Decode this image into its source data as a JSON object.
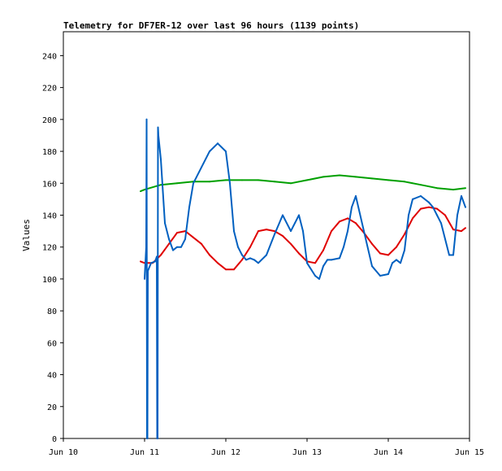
{
  "chart_data": {
    "type": "line",
    "title": "Telemetry for DF7ER-12 over last 96 hours (1139 points)",
    "xlabel": "",
    "ylabel": "Values",
    "ylim": [
      0,
      255
    ],
    "y_ticks": [
      0,
      20,
      40,
      60,
      80,
      100,
      120,
      140,
      160,
      180,
      200,
      220,
      240
    ],
    "x_ticks": [
      {
        "pos": 0,
        "label": "Jun 10"
      },
      {
        "pos": 1,
        "label": "Jun 11"
      },
      {
        "pos": 2,
        "label": "Jun 12"
      },
      {
        "pos": 3,
        "label": "Jun 13"
      },
      {
        "pos": 4,
        "label": "Jun 14"
      },
      {
        "pos": 5,
        "label": "Jun 15"
      }
    ],
    "xlim": [
      0,
      5
    ],
    "grid": false,
    "legend": "none",
    "series": [
      {
        "color": "#00a000",
        "x": [
          0.95,
          1.0,
          1.2,
          1.4,
          1.6,
          1.8,
          2.0,
          2.2,
          2.4,
          2.6,
          2.8,
          3.0,
          3.2,
          3.4,
          3.6,
          3.8,
          4.0,
          4.2,
          4.4,
          4.6,
          4.8,
          4.95
        ],
        "y": [
          155,
          156,
          159,
          160,
          161,
          161,
          162,
          162,
          162,
          161,
          160,
          162,
          164,
          165,
          164,
          163,
          162,
          161,
          159,
          157,
          156,
          157
        ]
      },
      {
        "color": "#e00000",
        "x": [
          0.95,
          1.0,
          1.1,
          1.2,
          1.3,
          1.4,
          1.5,
          1.6,
          1.7,
          1.8,
          1.9,
          2.0,
          2.1,
          2.2,
          2.3,
          2.4,
          2.5,
          2.6,
          2.7,
          2.8,
          2.9,
          3.0,
          3.1,
          3.2,
          3.3,
          3.4,
          3.5,
          3.6,
          3.7,
          3.8,
          3.9,
          4.0,
          4.1,
          4.2,
          4.3,
          4.4,
          4.5,
          4.6,
          4.7,
          4.8,
          4.9,
          4.95
        ],
        "y": [
          111,
          110,
          110,
          115,
          122,
          129,
          130,
          126,
          122,
          115,
          110,
          106,
          106,
          112,
          120,
          130,
          131,
          130,
          127,
          122,
          116,
          111,
          110,
          118,
          130,
          136,
          138,
          135,
          129,
          122,
          116,
          115,
          120,
          128,
          138,
          144,
          145,
          144,
          140,
          131,
          130,
          132
        ]
      },
      {
        "color": "#0060c0",
        "x": [
          1.0,
          1.02,
          1.025,
          1.03,
          1.035,
          1.04,
          1.08,
          1.13,
          1.15,
          1.155,
          1.16,
          1.165,
          1.17,
          1.2,
          1.25,
          1.3,
          1.35,
          1.4,
          1.45,
          1.5,
          1.55,
          1.6,
          1.7,
          1.8,
          1.9,
          2.0,
          2.05,
          2.1,
          2.15,
          2.2,
          2.25,
          2.3,
          2.35,
          2.4,
          2.5,
          2.6,
          2.7,
          2.8,
          2.85,
          2.9,
          2.95,
          3.0,
          3.1,
          3.15,
          3.2,
          3.25,
          3.3,
          3.4,
          3.45,
          3.5,
          3.55,
          3.6,
          3.7,
          3.8,
          3.9,
          4.0,
          4.05,
          4.1,
          4.15,
          4.2,
          4.25,
          4.3,
          4.4,
          4.5,
          4.55,
          4.6,
          4.65,
          4.7,
          4.75,
          4.8,
          4.85,
          4.9,
          4.95
        ],
        "y": [
          100,
          120,
          200,
          0,
          0,
          105,
          110,
          111,
          114,
          0,
          0,
          195,
          190,
          175,
          135,
          125,
          118,
          120,
          120,
          125,
          145,
          160,
          170,
          180,
          185,
          180,
          160,
          130,
          120,
          115,
          112,
          113,
          112,
          110,
          115,
          128,
          140,
          130,
          135,
          140,
          130,
          110,
          102,
          100,
          108,
          112,
          112,
          113,
          120,
          130,
          145,
          152,
          130,
          108,
          102,
          103,
          110,
          112,
          110,
          118,
          140,
          150,
          152,
          148,
          145,
          140,
          135,
          125,
          115,
          115,
          140,
          152,
          145
        ]
      }
    ]
  }
}
